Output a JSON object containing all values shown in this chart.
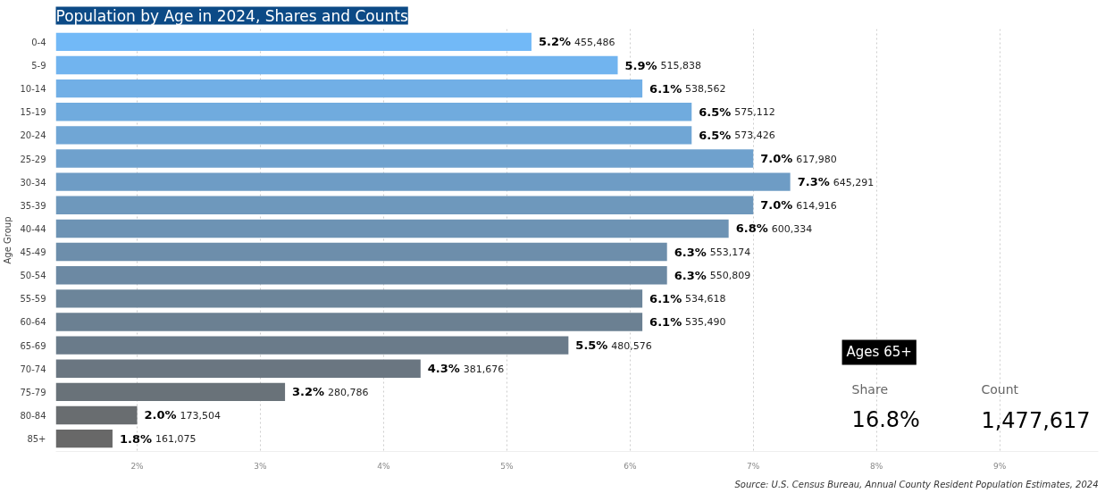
{
  "chart_data": {
    "type": "bar",
    "orientation": "horizontal",
    "title": "Population by Age in 2024, Shares and Counts",
    "ylabel": "Age Group",
    "categories": [
      "0-4",
      "5-9",
      "10-14",
      "15-19",
      "20-24",
      "25-29",
      "30-34",
      "35-39",
      "40-44",
      "45-49",
      "50-54",
      "55-59",
      "60-64",
      "65-69",
      "70-74",
      "75-79",
      "80-84",
      "85+"
    ],
    "values": [
      5.2,
      5.9,
      6.1,
      6.5,
      6.5,
      7.0,
      7.3,
      7.0,
      6.8,
      6.3,
      6.3,
      6.1,
      6.1,
      5.5,
      4.3,
      3.2,
      2.0,
      1.8
    ],
    "value_labels": [
      "5.2% 455,486",
      "5.9% 515,838",
      "6.1% 538,562",
      "6.5% 575,112",
      "6.5% 573,426",
      "7.0% 617,980",
      "7.3% 645,291",
      "7.0% 614,916",
      "6.8% 600,334",
      "6.3% 553,174",
      "6.3% 550,809",
      "6.1% 534,618",
      "6.1% 535,490",
      "5.5% 480,576",
      "4.3% 381,676",
      "3.2% 280,786",
      "2.0% 173,504",
      "1.8% 161,075"
    ],
    "colors": [
      "#72b9f7",
      "#71b4ef",
      "#71afe6",
      "#70abde",
      "#70a6d5",
      "#6fa1cd",
      "#6e9cc5",
      "#6e98bc",
      "#6d93b4",
      "#6d8eab",
      "#6c89a3",
      "#6c859a",
      "#6b8092",
      "#6a7b8a",
      "#6a7681",
      "#697279",
      "#696d70",
      "#686868"
    ],
    "xlim": [
      1.34,
      9.8
    ],
    "xticks": [
      {
        "value": 2,
        "label": "2%"
      },
      {
        "value": 3,
        "label": "3%"
      },
      {
        "value": 4,
        "label": "4%"
      },
      {
        "value": 5,
        "label": "5%"
      },
      {
        "value": 6,
        "label": "6%"
      },
      {
        "value": 7,
        "label": "7%"
      },
      {
        "value": 8,
        "label": "8%"
      },
      {
        "value": 9,
        "label": "9%"
      }
    ],
    "grid": "x",
    "annotations": [
      "Ages 65+",
      "Share",
      "16.8%",
      "Count",
      "1,477,617",
      "Source: U.S. Census Bureau, Annual County Resident Population Estimates, 2024"
    ]
  }
}
